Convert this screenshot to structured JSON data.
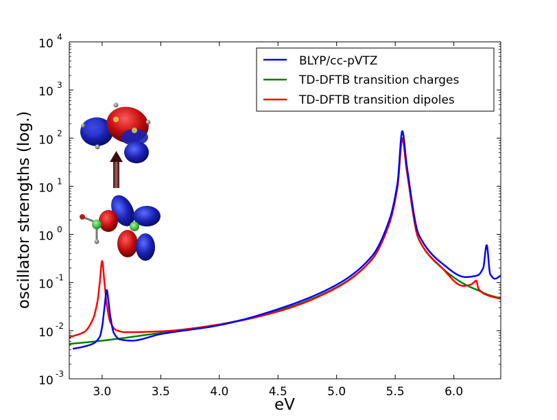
{
  "chart_data": {
    "type": "line",
    "xlabel": "eV",
    "ylabel": "oscillator strengths  (log.)",
    "xlim": [
      2.72,
      6.4
    ],
    "ylim_log10": [
      -3,
      4
    ],
    "y_scale": "log",
    "x_ticks": [
      3.0,
      3.5,
      4.0,
      4.5,
      5.0,
      5.5,
      6.0
    ],
    "x_tick_labels": [
      "3.0",
      "3.5",
      "4.0",
      "4.5",
      "5.0",
      "5.5",
      "6.0"
    ],
    "y_ticks": [
      {
        "base": "10",
        "exp": "-3",
        "value": 0.001
      },
      {
        "base": "10",
        "exp": "-2",
        "value": 0.01
      },
      {
        "base": "10",
        "exp": "-1",
        "value": 0.1
      },
      {
        "base": "10",
        "exp": "0",
        "value": 1
      },
      {
        "base": "10",
        "exp": "1",
        "value": 10
      },
      {
        "base": "10",
        "exp": "2",
        "value": 100
      },
      {
        "base": "10",
        "exp": "3",
        "value": 1000
      },
      {
        "base": "10",
        "exp": "4",
        "value": 10000
      }
    ],
    "legend_position": "top-right",
    "series": [
      {
        "name": "BLYP/cc-pVTZ",
        "color": "#0000ff",
        "x": [
          2.75,
          2.85,
          2.93,
          2.98,
          3.0,
          3.02,
          3.04,
          3.05,
          3.07,
          3.1,
          3.15,
          3.25,
          3.5,
          4.0,
          4.5,
          5.0,
          5.3,
          5.45,
          5.52,
          5.56,
          5.6,
          5.7,
          5.9,
          6.1,
          6.2,
          6.25,
          6.28,
          6.31,
          6.35,
          6.4
        ],
        "values": [
          0.0042,
          0.0047,
          0.0055,
          0.0075,
          0.012,
          0.03,
          0.07,
          0.05,
          0.02,
          0.009,
          0.0066,
          0.0062,
          0.0085,
          0.013,
          0.028,
          0.09,
          0.35,
          2.0,
          12,
          140,
          25,
          1.0,
          0.25,
          0.13,
          0.14,
          0.2,
          0.6,
          0.15,
          0.12,
          0.14
        ]
      },
      {
        "name": "TD-DFTB transition charges",
        "color": "#008000",
        "x": [
          2.72,
          3.0,
          3.5,
          4.0,
          4.5,
          5.0,
          5.3,
          5.45,
          5.52,
          5.56,
          5.6,
          5.7,
          5.9,
          6.1,
          6.2,
          6.3,
          6.4
        ],
        "values": [
          0.0053,
          0.0062,
          0.009,
          0.0135,
          0.026,
          0.08,
          0.3,
          1.7,
          10,
          100,
          20,
          0.8,
          0.2,
          0.09,
          0.07,
          0.055,
          0.047
        ]
      },
      {
        "name": "TD-DFTB transition dipoles",
        "color": "#ff0000",
        "x": [
          2.72,
          2.85,
          2.92,
          2.96,
          2.98,
          3.0,
          3.02,
          3.04,
          3.07,
          3.12,
          3.2,
          3.5,
          4.0,
          4.5,
          5.0,
          5.3,
          5.45,
          5.52,
          5.56,
          5.6,
          5.7,
          5.9,
          6.08,
          6.14,
          6.17,
          6.19,
          6.21,
          6.25,
          6.3,
          6.4
        ],
        "values": [
          0.0073,
          0.0095,
          0.017,
          0.04,
          0.1,
          0.28,
          0.1,
          0.035,
          0.015,
          0.0103,
          0.0093,
          0.0097,
          0.0135,
          0.025,
          0.078,
          0.3,
          1.7,
          10,
          95,
          20,
          0.8,
          0.2,
          0.085,
          0.09,
          0.1,
          0.11,
          0.075,
          0.06,
          0.053,
          0.046
        ]
      }
    ],
    "inset": {
      "description_label": "orbital isosurfaces",
      "arrow_direction": "up"
    }
  }
}
